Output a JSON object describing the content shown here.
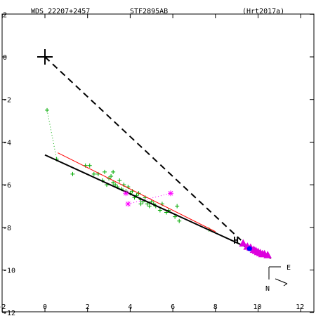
{
  "header": {
    "wds": "WDS 22207+2457",
    "discoverer": "STF2895AB",
    "reference": "(Hrt2017a)"
  },
  "compass": {
    "east": "E",
    "north": "N"
  },
  "colors": {
    "axes": "#000000",
    "measures": "#00aa00",
    "speckle": "#ff00ff",
    "orbit": "#000000",
    "linear_fit": "#ff0000",
    "first_measure_link": "#00aa00",
    "recent": "#dd00dd",
    "highlight": "#0000ff",
    "marker_h": "#ff0000"
  },
  "chart_data": {
    "type": "scatter",
    "title": "",
    "xlabel": "",
    "ylabel": "",
    "xlim": [
      -2,
      12
    ],
    "ylim": [
      -12,
      2
    ],
    "x_ticks": [
      -2,
      0,
      2,
      4,
      6,
      8,
      10,
      12
    ],
    "y_ticks": [
      2,
      0,
      -2,
      -4,
      -6,
      -8,
      -10,
      -12
    ],
    "primary_star": [
      0,
      0
    ],
    "orbit_line": [
      [
        0.0,
        -4.6
      ],
      [
        10.6,
        -9.45
      ]
    ],
    "linear_fit": [
      [
        0.6,
        -4.5
      ],
      [
        8.0,
        -8.2
      ]
    ],
    "dashed_connector": [
      [
        0,
        0
      ],
      [
        9.2,
        -8.6
      ]
    ],
    "dotted_first_link": [
      [
        0.1,
        -2.5
      ],
      [
        0.55,
        -4.8
      ]
    ],
    "measures": [
      [
        0.1,
        -2.5
      ],
      [
        0.55,
        -4.8
      ],
      [
        1.3,
        -5.5
      ],
      [
        1.9,
        -5.1
      ],
      [
        2.1,
        -5.1
      ],
      [
        2.3,
        -5.5
      ],
      [
        2.5,
        -5.5
      ],
      [
        2.7,
        -5.8
      ],
      [
        2.8,
        -5.4
      ],
      [
        2.9,
        -6.0
      ],
      [
        3.0,
        -5.7
      ],
      [
        3.1,
        -5.6
      ],
      [
        3.2,
        -5.9
      ],
      [
        3.2,
        -5.4
      ],
      [
        3.3,
        -6.0
      ],
      [
        3.4,
        -6.1
      ],
      [
        3.5,
        -5.8
      ],
      [
        3.6,
        -6.2
      ],
      [
        3.7,
        -6.0
      ],
      [
        3.8,
        -6.3
      ],
      [
        3.9,
        -6.1
      ],
      [
        4.0,
        -6.4
      ],
      [
        4.1,
        -6.3
      ],
      [
        4.2,
        -6.6
      ],
      [
        4.3,
        -6.5
      ],
      [
        4.4,
        -6.4
      ],
      [
        4.5,
        -6.7
      ],
      [
        4.5,
        -6.9
      ],
      [
        4.6,
        -6.8
      ],
      [
        4.7,
        -6.6
      ],
      [
        4.8,
        -6.9
      ],
      [
        4.9,
        -7.0
      ],
      [
        5.0,
        -6.8
      ],
      [
        5.1,
        -6.9
      ],
      [
        5.2,
        -7.0
      ],
      [
        5.4,
        -7.2
      ],
      [
        5.5,
        -6.9
      ],
      [
        5.7,
        -7.3
      ],
      [
        5.8,
        -7.2
      ],
      [
        6.1,
        -7.5
      ],
      [
        6.2,
        -7.0
      ],
      [
        6.3,
        -7.7
      ],
      [
        7.7,
        -8.1
      ]
    ],
    "speckle": [
      [
        3.8,
        -6.4
      ],
      [
        3.9,
        -6.9
      ],
      [
        5.9,
        -6.4
      ]
    ],
    "recent": [
      [
        9.3,
        -8.75
      ],
      [
        9.5,
        -8.9
      ],
      [
        9.65,
        -8.95
      ],
      [
        9.8,
        -9.05
      ],
      [
        9.9,
        -9.1
      ],
      [
        10.0,
        -9.15
      ],
      [
        10.1,
        -9.2
      ],
      [
        10.2,
        -9.25
      ],
      [
        10.3,
        -9.25
      ],
      [
        10.45,
        -9.3
      ]
    ],
    "highlight": [
      9.6,
      -9.0
    ],
    "marker_h_at": [
      9.0,
      -8.6
    ],
    "marker_h_label": "H"
  }
}
